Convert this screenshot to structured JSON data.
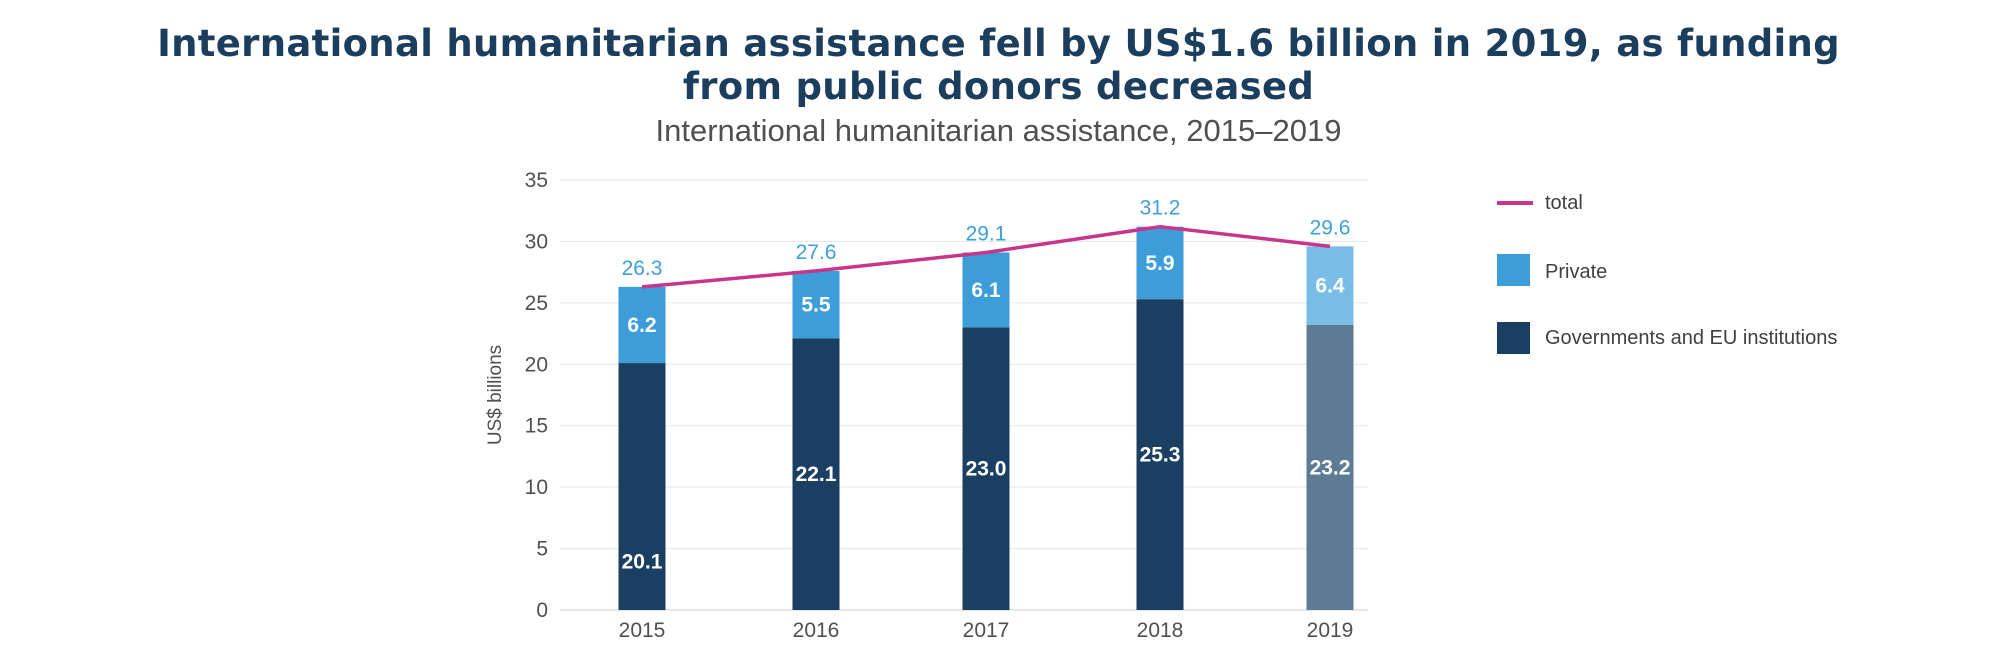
{
  "header": {
    "title_line1": "International humanitarian assistance fell by US$1.6 billion in 2019, as funding",
    "title_line2": "from public donors decreased",
    "subtitle": "International humanitarian assistance, 2015–2019"
  },
  "chart_data": {
    "type": "bar",
    "stacked": true,
    "categories": [
      "2015",
      "2016",
      "2017",
      "2018",
      "2019"
    ],
    "series": [
      {
        "name": "Governments and EU institutions",
        "values": [
          20.1,
          22.1,
          23.0,
          25.3,
          23.2
        ],
        "color": "#1b3f62",
        "color_last": "#5e7b95"
      },
      {
        "name": "Private",
        "values": [
          6.2,
          5.5,
          6.1,
          5.9,
          6.4
        ],
        "color": "#3d9dd9",
        "color_last": "#79bde6"
      },
      {
        "name": "total",
        "type": "line",
        "values": [
          26.3,
          27.6,
          29.1,
          31.2,
          29.6
        ],
        "color": "#c7358d"
      }
    ],
    "segment_labels": {
      "governments": [
        "20.1",
        "22.1",
        "23.0",
        "25.3",
        "23.2"
      ],
      "private": [
        "6.2",
        "5.5",
        "6.1",
        "5.9",
        "6.4"
      ],
      "total": [
        "26.3",
        "27.6",
        "29.1",
        "31.2",
        "29.6"
      ]
    },
    "ylabel": "US$ billions",
    "ylim": [
      0,
      35
    ],
    "yticks": [
      "0",
      "5",
      "10",
      "15",
      "20",
      "25",
      "30",
      "35"
    ],
    "grid": true,
    "legend_position": "right",
    "legend": [
      "total",
      "Private",
      "Governments and EU institutions"
    ]
  }
}
